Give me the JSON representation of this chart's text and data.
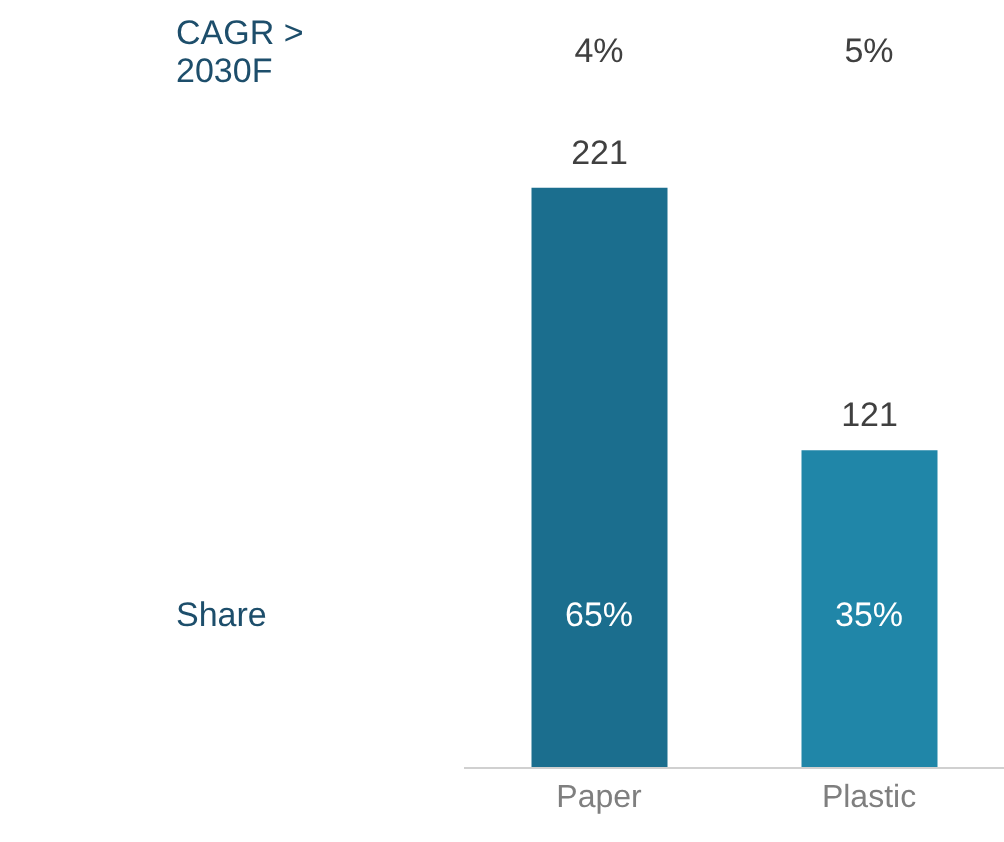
{
  "chart_data": {
    "type": "bar",
    "categories": [
      "Paper",
      "Plastic"
    ],
    "values": [
      221,
      121
    ],
    "colors": [
      "#1b6e8e",
      "#2086a8"
    ],
    "data_labels": true,
    "annotations": [
      "CAGR >\n2030F",
      "4%",
      "5%",
      "Share",
      "65%",
      "35%"
    ]
  }
}
